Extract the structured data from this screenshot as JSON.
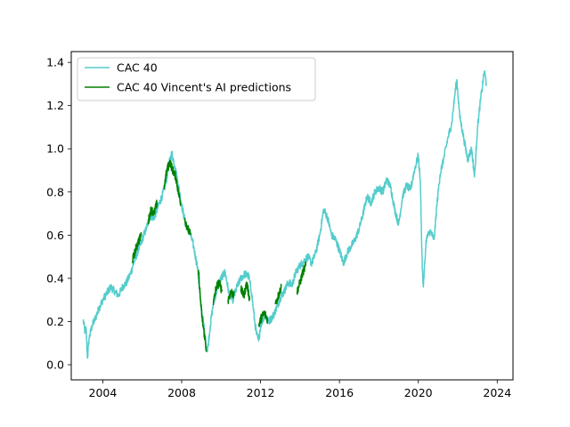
{
  "chart_data": {
    "type": "line",
    "title": "",
    "xlabel": "",
    "ylabel": "",
    "xlim": [
      2002.4,
      2024.8
    ],
    "ylim": [
      -0.07,
      1.45
    ],
    "x_ticks": [
      2004,
      2008,
      2012,
      2016,
      2020,
      2024
    ],
    "y_ticks": [
      0.0,
      0.2,
      0.4,
      0.6,
      0.8,
      1.0,
      1.2,
      1.4
    ],
    "grid": false,
    "legend_position": "top-left",
    "series": [
      {
        "name": "CAC 40",
        "color": "#55cccc",
        "points": [
          [
            2003.0,
            0.21
          ],
          [
            2003.1,
            0.15
          ],
          [
            2003.15,
            0.17
          ],
          [
            2003.22,
            0.03
          ],
          [
            2003.3,
            0.12
          ],
          [
            2003.45,
            0.18
          ],
          [
            2003.6,
            0.21
          ],
          [
            2003.8,
            0.26
          ],
          [
            2004.0,
            0.3
          ],
          [
            2004.2,
            0.33
          ],
          [
            2004.4,
            0.36
          ],
          [
            2004.6,
            0.34
          ],
          [
            2004.8,
            0.32
          ],
          [
            2005.0,
            0.36
          ],
          [
            2005.2,
            0.38
          ],
          [
            2005.4,
            0.42
          ],
          [
            2005.6,
            0.48
          ],
          [
            2005.8,
            0.53
          ],
          [
            2006.0,
            0.58
          ],
          [
            2006.2,
            0.63
          ],
          [
            2006.4,
            0.69
          ],
          [
            2006.6,
            0.68
          ],
          [
            2006.8,
            0.73
          ],
          [
            2007.0,
            0.78
          ],
          [
            2007.2,
            0.84
          ],
          [
            2007.35,
            0.93
          ],
          [
            2007.5,
            0.98
          ],
          [
            2007.65,
            0.92
          ],
          [
            2007.8,
            0.85
          ],
          [
            2008.0,
            0.74
          ],
          [
            2008.2,
            0.65
          ],
          [
            2008.4,
            0.62
          ],
          [
            2008.6,
            0.55
          ],
          [
            2008.8,
            0.45
          ],
          [
            2008.9,
            0.35
          ],
          [
            2009.0,
            0.25
          ],
          [
            2009.1,
            0.2
          ],
          [
            2009.2,
            0.12
          ],
          [
            2009.3,
            0.06
          ],
          [
            2009.45,
            0.18
          ],
          [
            2009.6,
            0.28
          ],
          [
            2009.8,
            0.35
          ],
          [
            2010.0,
            0.4
          ],
          [
            2010.2,
            0.43
          ],
          [
            2010.4,
            0.33
          ],
          [
            2010.6,
            0.3
          ],
          [
            2010.8,
            0.36
          ],
          [
            2011.0,
            0.4
          ],
          [
            2011.2,
            0.42
          ],
          [
            2011.4,
            0.41
          ],
          [
            2011.55,
            0.33
          ],
          [
            2011.7,
            0.2
          ],
          [
            2011.8,
            0.14
          ],
          [
            2011.9,
            0.11
          ],
          [
            2012.0,
            0.18
          ],
          [
            2012.2,
            0.23
          ],
          [
            2012.4,
            0.2
          ],
          [
            2012.6,
            0.22
          ],
          [
            2012.8,
            0.26
          ],
          [
            2013.0,
            0.31
          ],
          [
            2013.2,
            0.34
          ],
          [
            2013.4,
            0.38
          ],
          [
            2013.6,
            0.37
          ],
          [
            2013.8,
            0.43
          ],
          [
            2014.0,
            0.46
          ],
          [
            2014.2,
            0.48
          ],
          [
            2014.4,
            0.5
          ],
          [
            2014.6,
            0.47
          ],
          [
            2014.8,
            0.52
          ],
          [
            2015.0,
            0.6
          ],
          [
            2015.2,
            0.72
          ],
          [
            2015.4,
            0.68
          ],
          [
            2015.6,
            0.6
          ],
          [
            2015.8,
            0.58
          ],
          [
            2016.0,
            0.53
          ],
          [
            2016.2,
            0.47
          ],
          [
            2016.4,
            0.52
          ],
          [
            2016.6,
            0.55
          ],
          [
            2016.8,
            0.58
          ],
          [
            2017.0,
            0.63
          ],
          [
            2017.2,
            0.7
          ],
          [
            2017.4,
            0.78
          ],
          [
            2017.6,
            0.75
          ],
          [
            2017.8,
            0.8
          ],
          [
            2018.0,
            0.82
          ],
          [
            2018.2,
            0.8
          ],
          [
            2018.4,
            0.86
          ],
          [
            2018.6,
            0.82
          ],
          [
            2018.8,
            0.72
          ],
          [
            2019.0,
            0.65
          ],
          [
            2019.2,
            0.78
          ],
          [
            2019.4,
            0.83
          ],
          [
            2019.6,
            0.81
          ],
          [
            2019.8,
            0.9
          ],
          [
            2020.0,
            0.97
          ],
          [
            2020.1,
            0.85
          ],
          [
            2020.2,
            0.45
          ],
          [
            2020.25,
            0.36
          ],
          [
            2020.4,
            0.58
          ],
          [
            2020.6,
            0.62
          ],
          [
            2020.8,
            0.58
          ],
          [
            2020.95,
            0.75
          ],
          [
            2021.1,
            0.88
          ],
          [
            2021.3,
            0.96
          ],
          [
            2021.5,
            1.05
          ],
          [
            2021.7,
            1.12
          ],
          [
            2021.85,
            1.25
          ],
          [
            2021.95,
            1.32
          ],
          [
            2022.1,
            1.15
          ],
          [
            2022.3,
            1.05
          ],
          [
            2022.5,
            0.95
          ],
          [
            2022.7,
            1.0
          ],
          [
            2022.85,
            0.87
          ],
          [
            2023.0,
            1.1
          ],
          [
            2023.2,
            1.26
          ],
          [
            2023.35,
            1.36
          ],
          [
            2023.45,
            1.3
          ]
        ]
      },
      {
        "name": "CAC 40 Vincent's AI predictions",
        "color": "#008000",
        "segments": [
          [
            [
              2005.5,
              0.48
            ],
            [
              2005.65,
              0.53
            ],
            [
              2005.8,
              0.57
            ],
            [
              2005.95,
              0.6
            ]
          ],
          [
            [
              2006.3,
              0.66
            ],
            [
              2006.45,
              0.72
            ],
            [
              2006.6,
              0.7
            ],
            [
              2006.75,
              0.75
            ]
          ],
          [
            [
              2007.1,
              0.82
            ],
            [
              2007.25,
              0.9
            ],
            [
              2007.4,
              0.94
            ],
            [
              2007.55,
              0.9
            ],
            [
              2007.7,
              0.87
            ],
            [
              2007.85,
              0.79
            ],
            [
              2007.95,
              0.75
            ]
          ],
          [
            [
              2008.15,
              0.68
            ],
            [
              2008.3,
              0.63
            ],
            [
              2008.45,
              0.6
            ]
          ],
          [
            [
              2008.85,
              0.44
            ],
            [
              2008.95,
              0.3
            ],
            [
              2009.05,
              0.2
            ],
            [
              2009.15,
              0.14
            ],
            [
              2009.25,
              0.07
            ]
          ],
          [
            [
              2009.6,
              0.28
            ],
            [
              2009.75,
              0.36
            ],
            [
              2009.9,
              0.38
            ],
            [
              2010.05,
              0.34
            ]
          ],
          [
            [
              2010.35,
              0.3
            ],
            [
              2010.5,
              0.34
            ],
            [
              2010.65,
              0.32
            ]
          ],
          [
            [
              2011.0,
              0.35
            ],
            [
              2011.15,
              0.32
            ],
            [
              2011.3,
              0.38
            ],
            [
              2011.45,
              0.3
            ]
          ],
          [
            [
              2011.9,
              0.18
            ],
            [
              2012.05,
              0.22
            ],
            [
              2012.2,
              0.24
            ],
            [
              2012.35,
              0.21
            ]
          ],
          [
            [
              2012.75,
              0.28
            ],
            [
              2012.9,
              0.32
            ],
            [
              2013.05,
              0.36
            ]
          ],
          [
            [
              2013.85,
              0.34
            ],
            [
              2014.0,
              0.38
            ],
            [
              2014.15,
              0.43
            ],
            [
              2014.3,
              0.46
            ]
          ]
        ]
      }
    ]
  }
}
